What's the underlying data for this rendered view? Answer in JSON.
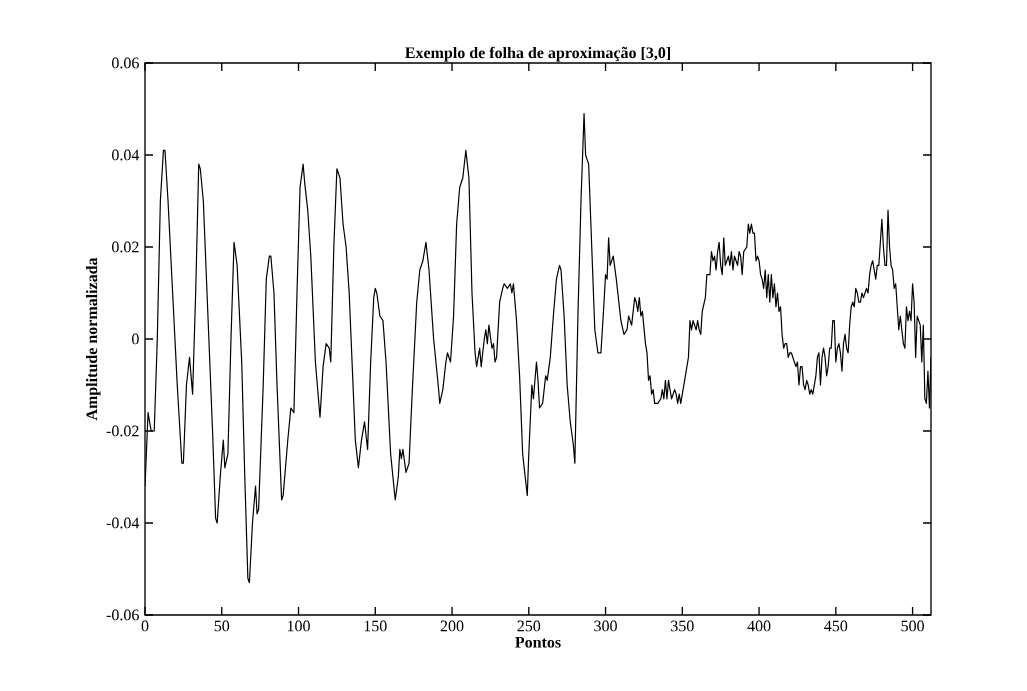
{
  "chart_data": {
    "type": "line",
    "title": "Exemplo de folha de aproximação [3,0]",
    "xlabel": "Pontos",
    "ylabel": "Amplitude normalizada",
    "xlim": [
      0,
      512
    ],
    "ylim": [
      -0.06,
      0.06
    ],
    "xticks": [
      0,
      50,
      100,
      150,
      200,
      250,
      300,
      350,
      400,
      450,
      500
    ],
    "yticks": [
      -0.06,
      -0.04,
      -0.02,
      0,
      0.02,
      0.04,
      0.06
    ],
    "grid": false,
    "marker": "none",
    "line_style": "solid",
    "series": [
      {
        "color": "#000000",
        "x": [
          0,
          2,
          4,
          6,
          8,
          10,
          12,
          13,
          15,
          18,
          21,
          24,
          25,
          27,
          29,
          31,
          33,
          35,
          36,
          38,
          41,
          44,
          46,
          47,
          49,
          51,
          52,
          54,
          56,
          58,
          60,
          63,
          65,
          67,
          68,
          70,
          72,
          73,
          74,
          77,
          79,
          81,
          82,
          84,
          86,
          89,
          90,
          93,
          95,
          97,
          99,
          101,
          103,
          104,
          106,
          108,
          111,
          114,
          116,
          118,
          120,
          121,
          123,
          125,
          127,
          129,
          131,
          133,
          137,
          139,
          141,
          143,
          145,
          147,
          149,
          150,
          151,
          153,
          155,
          157,
          160,
          163,
          165,
          166,
          167,
          168,
          170,
          172,
          174,
          177,
          179,
          181,
          183,
          185,
          188,
          191,
          192,
          194,
          196,
          197,
          199,
          201,
          203,
          205,
          207,
          209,
          211,
          213,
          215,
          216,
          218,
          219,
          221,
          222,
          223,
          224,
          226,
          227,
          228,
          229,
          231,
          233,
          234,
          236,
          238,
          239,
          240,
          242,
          244,
          246,
          249,
          250,
          252,
          253,
          255,
          256,
          257,
          259,
          261,
          262,
          264,
          266,
          268,
          270,
          271,
          273,
          275,
          277,
          279,
          280,
          282,
          284,
          286,
          287,
          289,
          291,
          293,
          295,
          297,
          299,
          300,
          301,
          302,
          303,
          305,
          307,
          308,
          310,
          312,
          314,
          315,
          317,
          319,
          320,
          321,
          322,
          323,
          324,
          326,
          327,
          328,
          329,
          330,
          331,
          332,
          334,
          336,
          337,
          338,
          339,
          340,
          341,
          342,
          343,
          345,
          346,
          347,
          348,
          349,
          350,
          352,
          354,
          355,
          356,
          357,
          358,
          359,
          360,
          361,
          362,
          363,
          365,
          366,
          368,
          369,
          370,
          371,
          372,
          373,
          374,
          375,
          376,
          377,
          378,
          379,
          380,
          381,
          382,
          383,
          384,
          385,
          386,
          387,
          388,
          389,
          390,
          392,
          393,
          394,
          395,
          396,
          397,
          398,
          399,
          400,
          401,
          402,
          403,
          404,
          405,
          406,
          407,
          408,
          409,
          410,
          411,
          412,
          413,
          414,
          415,
          416,
          417,
          418,
          419,
          420,
          421,
          423,
          424,
          425,
          426,
          427,
          428,
          429,
          430,
          431,
          432,
          433,
          434,
          435,
          436,
          437,
          438,
          439,
          440,
          441,
          442,
          443,
          444,
          445,
          446,
          447,
          448,
          449,
          450,
          451,
          452,
          453,
          454,
          455,
          456,
          457,
          458,
          459,
          460,
          461,
          462,
          463,
          464,
          465,
          466,
          467,
          468,
          469,
          470,
          471,
          472,
          473,
          474,
          475,
          476,
          477,
          478,
          479,
          480,
          481,
          482,
          483,
          484,
          485,
          486,
          487,
          488,
          489,
          490,
          491,
          492,
          493,
          494,
          495,
          496,
          497,
          498,
          499,
          500,
          501,
          502,
          503,
          504,
          505,
          506,
          507,
          508,
          509,
          510,
          511,
          512
        ],
        "values": [
          -0.032,
          -0.016,
          -0.02,
          -0.02,
          0.0,
          0.03,
          0.041,
          0.041,
          0.03,
          0.01,
          -0.01,
          -0.027,
          -0.027,
          -0.01,
          -0.004,
          -0.012,
          0.01,
          0.038,
          0.037,
          0.03,
          0.005,
          -0.02,
          -0.039,
          -0.04,
          -0.03,
          -0.022,
          -0.028,
          -0.025,
          0.0,
          0.021,
          0.016,
          -0.005,
          -0.03,
          -0.052,
          -0.053,
          -0.04,
          -0.032,
          -0.038,
          -0.037,
          -0.01,
          0.013,
          0.018,
          0.018,
          0.01,
          -0.01,
          -0.035,
          -0.034,
          -0.022,
          -0.015,
          -0.016,
          0.01,
          0.033,
          0.038,
          0.034,
          0.028,
          0.018,
          -0.005,
          -0.017,
          -0.006,
          -0.001,
          -0.002,
          -0.005,
          0.02,
          0.037,
          0.035,
          0.025,
          0.02,
          0.01,
          -0.022,
          -0.028,
          -0.022,
          -0.018,
          -0.024,
          -0.005,
          0.009,
          0.011,
          0.01,
          0.005,
          0.004,
          -0.005,
          -0.025,
          -0.035,
          -0.03,
          -0.024,
          -0.026,
          -0.024,
          -0.029,
          -0.027,
          -0.012,
          0.008,
          0.015,
          0.017,
          0.021,
          0.015,
          0.0,
          -0.01,
          -0.014,
          -0.011,
          -0.005,
          -0.003,
          -0.005,
          0.005,
          0.025,
          0.033,
          0.035,
          0.041,
          0.035,
          0.01,
          -0.003,
          -0.006,
          -0.002,
          -0.006,
          0.0,
          0.002,
          -0.001,
          0.003,
          -0.002,
          -0.001,
          -0.005,
          -0.004,
          0.008,
          0.011,
          0.012,
          0.011,
          0.012,
          0.01,
          0.012,
          0.004,
          -0.008,
          -0.025,
          -0.034,
          -0.025,
          -0.01,
          -0.013,
          -0.005,
          -0.009,
          -0.015,
          -0.014,
          -0.008,
          -0.009,
          -0.004,
          0.005,
          0.013,
          0.016,
          0.015,
          0.005,
          -0.01,
          -0.018,
          -0.023,
          -0.027,
          0.005,
          0.03,
          0.049,
          0.04,
          0.038,
          0.02,
          0.002,
          -0.003,
          -0.003,
          0.008,
          0.014,
          0.013,
          0.022,
          0.016,
          0.018,
          0.013,
          0.01,
          0.004,
          0.001,
          0.002,
          0.005,
          0.003,
          0.009,
          0.008,
          0.006,
          0.009,
          0.005,
          0.006,
          -0.001,
          -0.003,
          -0.009,
          -0.008,
          -0.012,
          -0.011,
          -0.014,
          -0.014,
          -0.013,
          -0.011,
          -0.013,
          -0.009,
          -0.013,
          -0.009,
          -0.011,
          -0.013,
          -0.011,
          -0.012,
          -0.014,
          -0.012,
          -0.014,
          -0.012,
          -0.008,
          -0.004,
          0.004,
          0.002,
          0.004,
          0.003,
          0.002,
          0.004,
          0.002,
          0.001,
          0.006,
          0.009,
          0.014,
          0.014,
          0.019,
          0.017,
          0.018,
          0.015,
          0.019,
          0.021,
          0.016,
          0.014,
          0.022,
          0.016,
          0.017,
          0.018,
          0.016,
          0.019,
          0.015,
          0.018,
          0.017,
          0.016,
          0.019,
          0.018,
          0.014,
          0.019,
          0.02,
          0.025,
          0.023,
          0.025,
          0.023,
          0.023,
          0.017,
          0.018,
          0.017,
          0.014,
          0.013,
          0.011,
          0.015,
          0.009,
          0.014,
          0.008,
          0.014,
          0.009,
          0.012,
          0.007,
          0.01,
          0.006,
          0.007,
          0.001,
          -0.002,
          -0.001,
          -0.001,
          -0.004,
          -0.003,
          -0.003,
          -0.005,
          -0.006,
          -0.005,
          -0.01,
          -0.006,
          -0.006,
          -0.01,
          -0.011,
          -0.009,
          -0.01,
          -0.012,
          -0.011,
          -0.012,
          -0.01,
          -0.008,
          -0.004,
          -0.003,
          -0.01,
          -0.004,
          -0.002,
          -0.004,
          -0.008,
          -0.006,
          -0.002,
          -0.002,
          0.004,
          0.004,
          -0.005,
          -0.002,
          -0.001,
          -0.003,
          -0.007,
          -0.001,
          0.001,
          -0.002,
          -0.003,
          0.003,
          0.007,
          0.008,
          0.007,
          0.011,
          0.01,
          0.008,
          0.008,
          0.01,
          0.009,
          0.01,
          0.011,
          0.01,
          0.014,
          0.016,
          0.017,
          0.015,
          0.013,
          0.016,
          0.016,
          0.021,
          0.026,
          0.02,
          0.016,
          0.016,
          0.028,
          0.02,
          0.016,
          0.015,
          0.011,
          0.012,
          0.007,
          0.002,
          0.005,
          0.002,
          -0.001,
          -0.002,
          0.007,
          0.004,
          0.006,
          0.004,
          0.012,
          0.008,
          -0.004,
          0.005,
          0.004,
          0.003,
          -0.005,
          0.003,
          -0.013,
          -0.014,
          -0.007,
          -0.015,
          -0.004
        ]
      }
    ]
  }
}
